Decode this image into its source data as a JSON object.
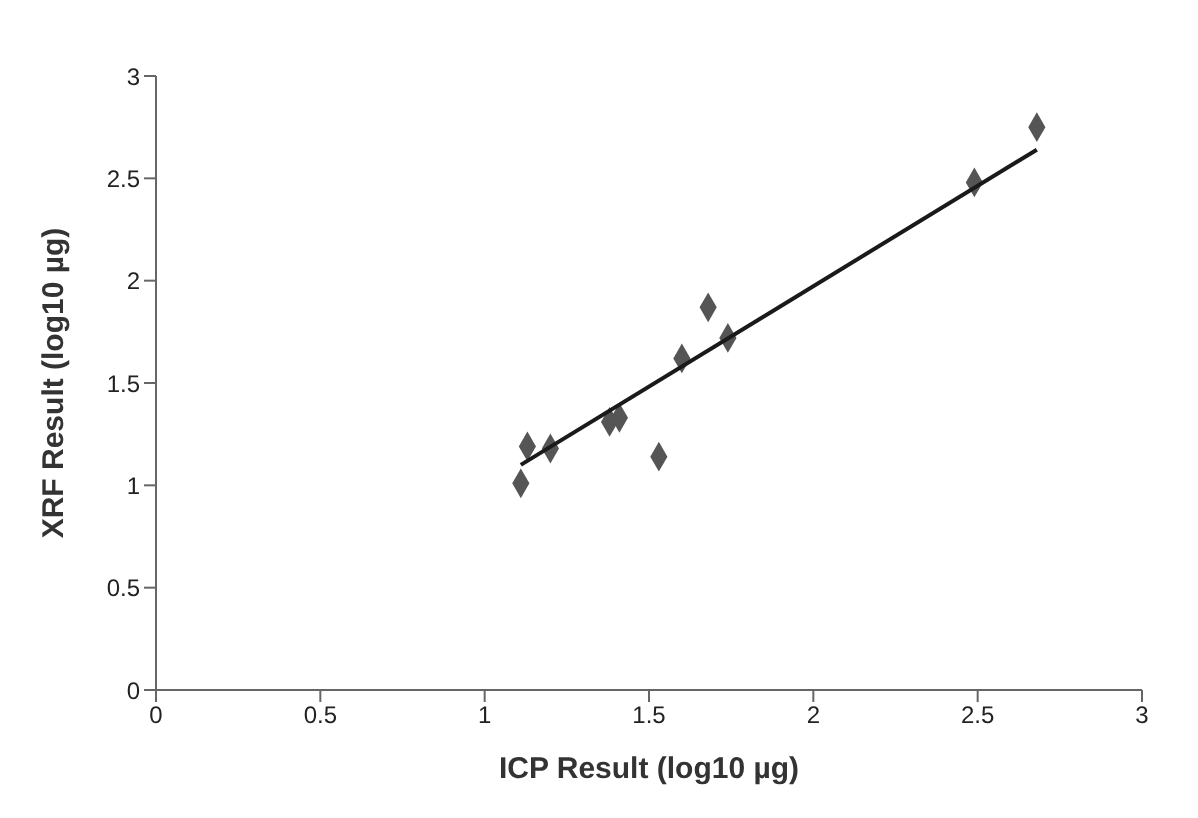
{
  "chart_data": {
    "type": "scatter",
    "xlabel": "ICP Result (log10 µg)",
    "ylabel": "XRF Result (log10 µg)",
    "xlim": [
      0,
      3
    ],
    "xticks": [
      0,
      0.5,
      1,
      1.5,
      2,
      2.5,
      3
    ],
    "ylim": [
      0,
      3
    ],
    "yticks": [
      0,
      0.5,
      1,
      1.5,
      2,
      2.5,
      3
    ],
    "grid": false,
    "legend": false,
    "marker": "diamond",
    "series": [
      {
        "color": "#555555",
        "x": [
          1.11,
          1.13,
          1.2,
          1.38,
          1.41,
          1.53,
          1.6,
          1.68,
          1.74,
          2.49,
          2.68
        ],
        "values": [
          1.01,
          1.19,
          1.18,
          1.31,
          1.33,
          1.14,
          1.62,
          1.87,
          1.72,
          2.48,
          2.75
        ]
      },
      {
        "type": "line",
        "color": "#1a1a1a",
        "marker": "none",
        "x": [
          1.11,
          2.68
        ],
        "values": [
          1.1,
          2.64
        ]
      }
    ]
  }
}
